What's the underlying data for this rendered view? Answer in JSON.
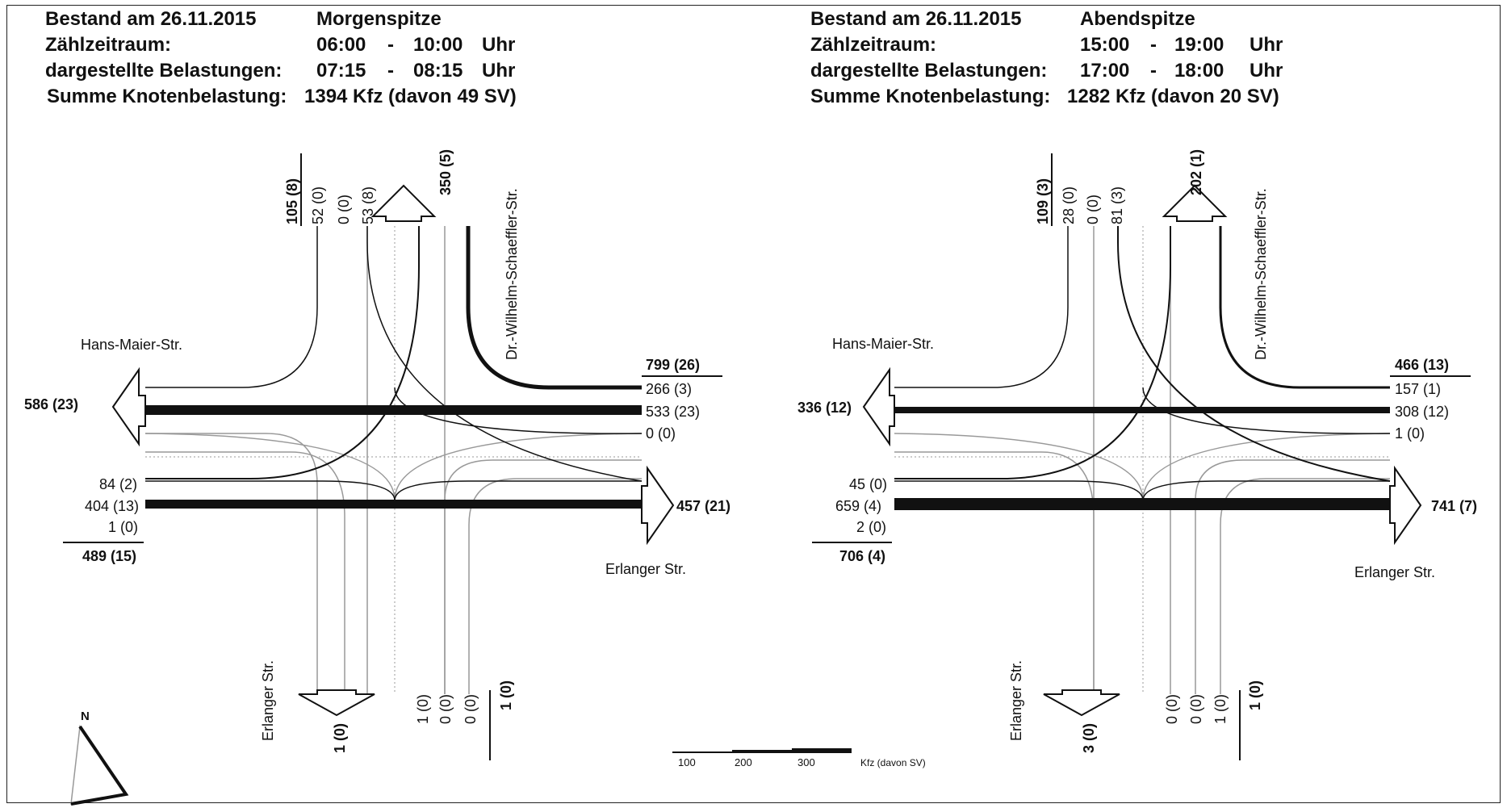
{
  "panels": [
    {
      "header": {
        "row1_label": "Bestand am 26.11.2015",
        "row1_value": "Morgenspitze",
        "row2_label": "Zählzeitraum:",
        "row2_from": "06:00",
        "row2_dash": "-",
        "row2_to": "10:00",
        "row2_unit": "Uhr",
        "row3_label": "dargestellte Belastungen:",
        "row3_from": "07:15",
        "row3_dash": "-",
        "row3_to": "08:15",
        "row3_unit": "Uhr",
        "row4_label": "Summe Knotenbelastung:",
        "row4_value": "1394 Kfz (davon 49 SV)"
      },
      "streets": {
        "west": "Hans-Maier-Str.",
        "north": "Dr.-Wilhelm-Schaeffler-Str.",
        "east": "Erlanger Str.",
        "south": "Erlanger Str."
      },
      "north_arm": {
        "inbound_total": "105 (8)",
        "lanes": [
          "52 (0)",
          "0 (0)",
          "53 (8)"
        ],
        "outbound_total": "350 (5)"
      },
      "east_arm": {
        "inbound_total": "799 (26)",
        "lanes": [
          "266 (3)",
          "533 (23)",
          "0 (0)"
        ],
        "outbound_total": "457 (21)"
      },
      "west_arm": {
        "outbound_total": "586 (23)",
        "lanes": [
          "84 (2)",
          "404 (13)",
          "1 (0)"
        ],
        "inbound_total": "489 (15)"
      },
      "south_arm": {
        "outbound_total": "1 (0)",
        "lanes": [
          "1 (0)",
          "0 (0)",
          "0 (0)"
        ],
        "inbound_total": "1 (0)"
      }
    },
    {
      "header": {
        "row1_label": "Bestand am 26.11.2015",
        "row1_value": "Abendspitze",
        "row2_label": "Zählzeitraum:",
        "row2_from": "15:00",
        "row2_dash": "-",
        "row2_to": "19:00",
        "row2_unit": "Uhr",
        "row3_label": "dargestellte Belastungen:",
        "row3_from": "17:00",
        "row3_dash": "-",
        "row3_to": "18:00",
        "row3_unit": "Uhr",
        "row4_label": "Summe Knotenbelastung:",
        "row4_value": "1282 Kfz (davon 20 SV)"
      },
      "streets": {
        "west": "Hans-Maier-Str.",
        "north": "Dr.-Wilhelm-Schaeffler-Str.",
        "east": "Erlanger Str.",
        "south": "Erlanger Str."
      },
      "north_arm": {
        "inbound_total": "109 (3)",
        "lanes": [
          "28 (0)",
          "0 (0)",
          "81 (3)"
        ],
        "outbound_total": "202 (1)"
      },
      "east_arm": {
        "inbound_total": "466 (13)",
        "lanes": [
          "157 (1)",
          "308 (12)",
          "1 (0)"
        ],
        "outbound_total": "741 (7)"
      },
      "west_arm": {
        "outbound_total": "336 (12)",
        "lanes": [
          "45 (0)",
          "659 (4)",
          "2 (0)"
        ],
        "inbound_total": "706 (4)"
      },
      "south_arm": {
        "outbound_total": "3 (0)",
        "lanes": [
          "0 (0)",
          "0 (0)",
          "1 (0)"
        ],
        "inbound_total": "1 (0)"
      }
    }
  ],
  "legend": {
    "tick_100": "100",
    "tick_200": "200",
    "tick_300": "300",
    "unit": "Kfz (davon SV)"
  },
  "north_arrow": {
    "label": "N"
  }
}
